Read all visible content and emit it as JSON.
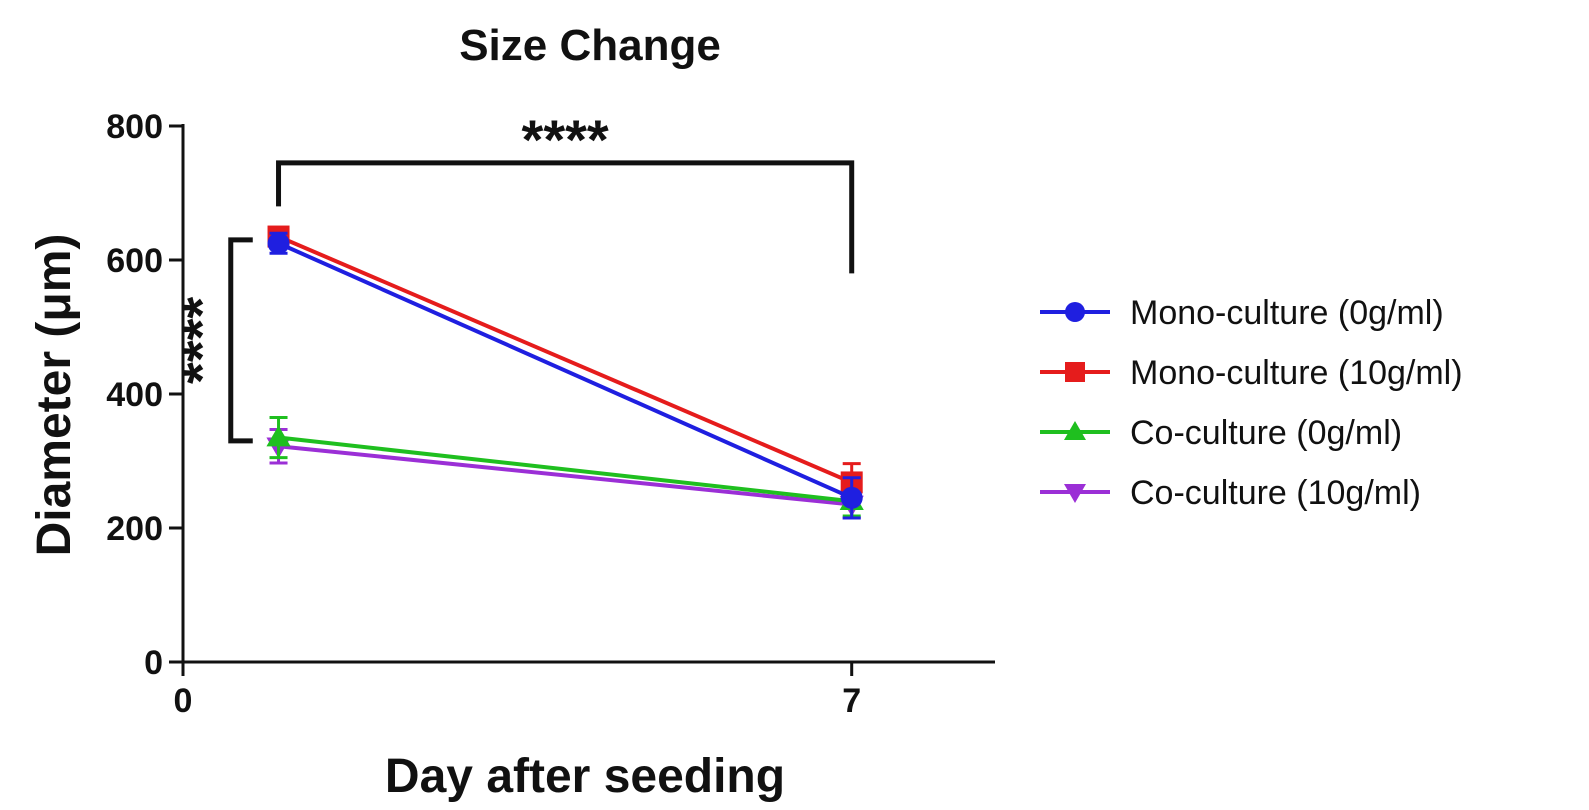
{
  "chart_data": {
    "type": "line",
    "title": "Size Change",
    "xlabel": "Day after seeding",
    "ylabel": "Diameter (μm)",
    "xlim": [
      0,
      8.5
    ],
    "ylim": [
      0,
      800
    ],
    "x_ticks": [
      0,
      7
    ],
    "x_tick_labels": [
      "0",
      "7"
    ],
    "y_ticks": [
      0,
      200,
      400,
      600,
      800
    ],
    "y_tick_labels": [
      "0",
      "200",
      "400",
      "600",
      "800"
    ],
    "grid": false,
    "legend_position": "right",
    "x": [
      1,
      7
    ],
    "series": [
      {
        "name": "Mono-culture (0g/ml)",
        "color": "#1f1fe0",
        "marker": "circle",
        "values": [
          625,
          245
        ],
        "errors": [
          15,
          30
        ]
      },
      {
        "name": "Mono-culture (10g/ml)",
        "color": "#e51c1c",
        "marker": "square",
        "values": [
          635,
          268
        ],
        "errors": [
          12,
          28
        ]
      },
      {
        "name": "Co-culture (0g/ml)",
        "color": "#1fbf1f",
        "marker": "triangle-up",
        "values": [
          335,
          240
        ],
        "errors": [
          30,
          22
        ]
      },
      {
        "name": "Co-culture (10g/ml)",
        "color": "#9b2fd6",
        "marker": "triangle-down",
        "values": [
          322,
          235
        ],
        "errors": [
          25,
          20
        ]
      }
    ],
    "annotations": [
      {
        "text": "****",
        "type": "bracket-horizontal",
        "from_x": 1,
        "to_x": 7,
        "y": 745,
        "left_end_y": 680,
        "right_end_y": 580
      },
      {
        "text": "****",
        "type": "bracket-vertical",
        "x": 0.5,
        "from_y": 330,
        "to_y": 630
      }
    ]
  }
}
